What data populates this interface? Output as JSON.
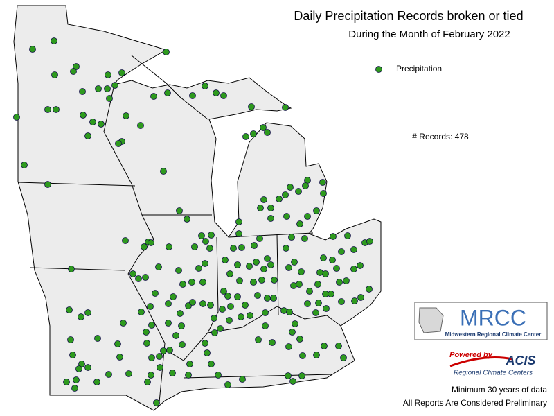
{
  "header": {
    "title": "Daily Precipitation Records broken or tied",
    "subtitle": "During the Month of February 2022"
  },
  "legend": {
    "label": "Precipitation"
  },
  "records": "# Records: 478",
  "logos": {
    "mrcc": "MRCC",
    "mrcc_name": "Midwestern Regional Climate Center",
    "powered_by": "Powered by",
    "acis": "ACIS",
    "acis_name": "Regional Climate Centers"
  },
  "footer": {
    "line1": "Minimum 30 years of data",
    "line2": "All Reports Are Considered Preliminary"
  }
}
